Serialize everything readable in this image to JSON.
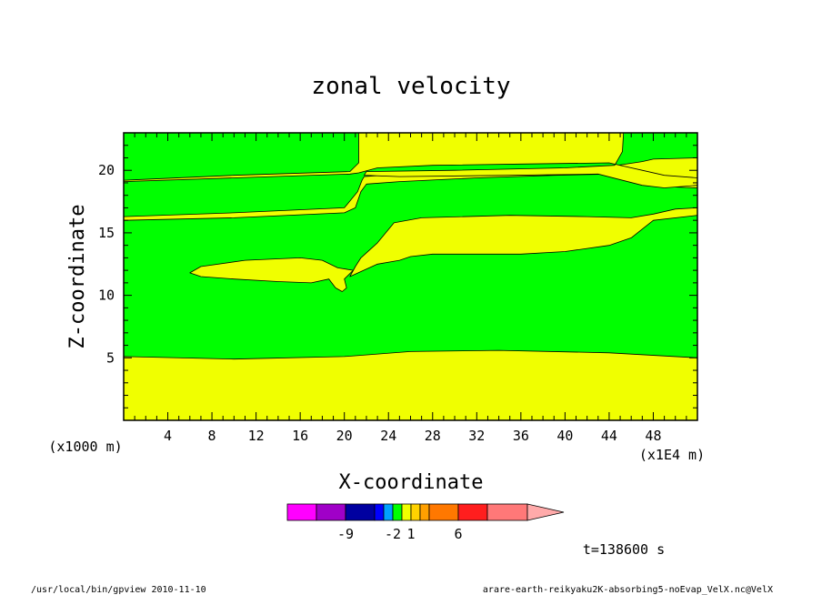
{
  "chart_data": {
    "type": "contour",
    "title": "zonal velocity",
    "xlabel": "X-coordinate",
    "ylabel": "Z-coordinate",
    "x_units": "(x1E4 m)",
    "y_units": "(x1000 m)",
    "xlim": [
      0,
      52
    ],
    "ylim": [
      0,
      23
    ],
    "x_ticks": [
      "4",
      "8",
      "12",
      "16",
      "20",
      "24",
      "28",
      "32",
      "36",
      "40",
      "44",
      "48"
    ],
    "y_ticks": [
      "5",
      "10",
      "15",
      "20"
    ],
    "levels": [
      {
        "color": "#ff00ff"
      },
      {
        "color": "#a000c8"
      },
      {
        "color": "#0000a0"
      },
      {
        "color": "#0000ff"
      },
      {
        "color": "#00a0ff"
      },
      {
        "color": "#00ff00"
      },
      {
        "color": "#f0ff00"
      },
      {
        "color": "#ffd200"
      },
      {
        "color": "#ffa000"
      },
      {
        "color": "#ff7800"
      },
      {
        "color": "#ff1e1e"
      },
      {
        "color": "#ff7878"
      },
      {
        "color": "#ffaaaa"
      }
    ],
    "colorbar_labels": [
      "-9",
      "-2",
      "1",
      "6"
    ],
    "yellow_regions": [
      {
        "name": "lower-band",
        "points": [
          [
            0,
            5.1
          ],
          [
            10,
            4.9
          ],
          [
            20,
            5.1
          ],
          [
            26,
            5.5
          ],
          [
            34,
            5.6
          ],
          [
            44,
            5.4
          ],
          [
            52,
            5.0
          ],
          [
            52,
            0
          ],
          [
            0,
            0
          ]
        ]
      },
      {
        "name": "middle-band",
        "points": [
          [
            0,
            16.3
          ],
          [
            10,
            16.6
          ],
          [
            20,
            17.0
          ],
          [
            21.2,
            18.3
          ],
          [
            21.6,
            19.2
          ],
          [
            21.8,
            19.5
          ],
          [
            25,
            19.7
          ],
          [
            32,
            19.8
          ],
          [
            38,
            19.9
          ],
          [
            44,
            20.3
          ],
          [
            47,
            20.7
          ],
          [
            48,
            20.9
          ],
          [
            52,
            21.0
          ],
          [
            52,
            16.4
          ],
          [
            48,
            16.0
          ],
          [
            46,
            14.6
          ],
          [
            44,
            14.0
          ],
          [
            40,
            13.5
          ],
          [
            36,
            13.3
          ],
          [
            28,
            13.3
          ],
          [
            26,
            13.1
          ],
          [
            25,
            12.8
          ],
          [
            23,
            12.5
          ],
          [
            20.5,
            11.5
          ],
          [
            21,
            12.3
          ],
          [
            21.5,
            13.0
          ],
          [
            23,
            14.2
          ],
          [
            24.5,
            15.8
          ],
          [
            27,
            16.2
          ],
          [
            35,
            16.4
          ],
          [
            42,
            16.3
          ],
          [
            46,
            16.2
          ],
          [
            48,
            16.5
          ],
          [
            50,
            16.9
          ],
          [
            52,
            17.0
          ],
          [
            52,
            18.6
          ],
          [
            49,
            18.7
          ],
          [
            47,
            19.1
          ],
          [
            44,
            19.7
          ],
          [
            39,
            19.6
          ],
          [
            32,
            19.4
          ],
          [
            25,
            19.1
          ],
          [
            22,
            18.9
          ],
          [
            21.5,
            18.3
          ],
          [
            21,
            17.0
          ],
          [
            20,
            16.6
          ],
          [
            10,
            16.2
          ],
          [
            0,
            16.0
          ],
          [
            0,
            16.3
          ]
        ]
      },
      {
        "name": "upper-band",
        "points": [
          [
            0,
            19.2
          ],
          [
            10,
            19.6
          ],
          [
            20.5,
            19.9
          ],
          [
            21.3,
            20.6
          ],
          [
            21.3,
            23
          ],
          [
            45.3,
            23
          ],
          [
            45.2,
            21.5
          ],
          [
            44.5,
            20.4
          ],
          [
            40,
            20.2
          ],
          [
            30,
            20.0
          ],
          [
            22.0,
            19.9
          ],
          [
            21.8,
            19.6
          ],
          [
            25,
            19.5
          ],
          [
            35,
            19.6
          ],
          [
            43,
            19.7
          ],
          [
            47,
            18.8
          ],
          [
            49,
            18.6
          ],
          [
            52,
            18.8
          ],
          [
            52,
            19.4
          ],
          [
            49,
            19.6
          ],
          [
            47,
            20.0
          ],
          [
            44,
            20.6
          ],
          [
            36,
            20.5
          ],
          [
            28,
            20.4
          ],
          [
            23,
            20.2
          ],
          [
            21.3,
            19.8
          ],
          [
            20.5,
            19.7
          ],
          [
            10,
            19.4
          ],
          [
            0,
            19.1
          ]
        ]
      },
      {
        "name": "tongue",
        "points": [
          [
            6,
            11.8
          ],
          [
            7,
            11.5
          ],
          [
            10,
            11.3
          ],
          [
            14,
            11.1
          ],
          [
            17,
            11.0
          ],
          [
            18.6,
            11.3
          ],
          [
            19.2,
            10.6
          ],
          [
            19.8,
            10.3
          ],
          [
            20.2,
            10.6
          ],
          [
            20,
            11.3
          ],
          [
            20.8,
            12.0
          ],
          [
            19.4,
            12.2
          ],
          [
            18,
            12.8
          ],
          [
            16,
            13.0
          ],
          [
            11,
            12.8
          ],
          [
            7,
            12.3
          ],
          [
            6,
            11.8
          ]
        ]
      }
    ]
  },
  "footer": {
    "timestamp": "t=138600 s",
    "program": "/usr/local/bin/gpview  2010-11-10",
    "source": "arare-earth-reikyaku2K-absorbing5-noEvap_VelX.nc@VelX"
  }
}
